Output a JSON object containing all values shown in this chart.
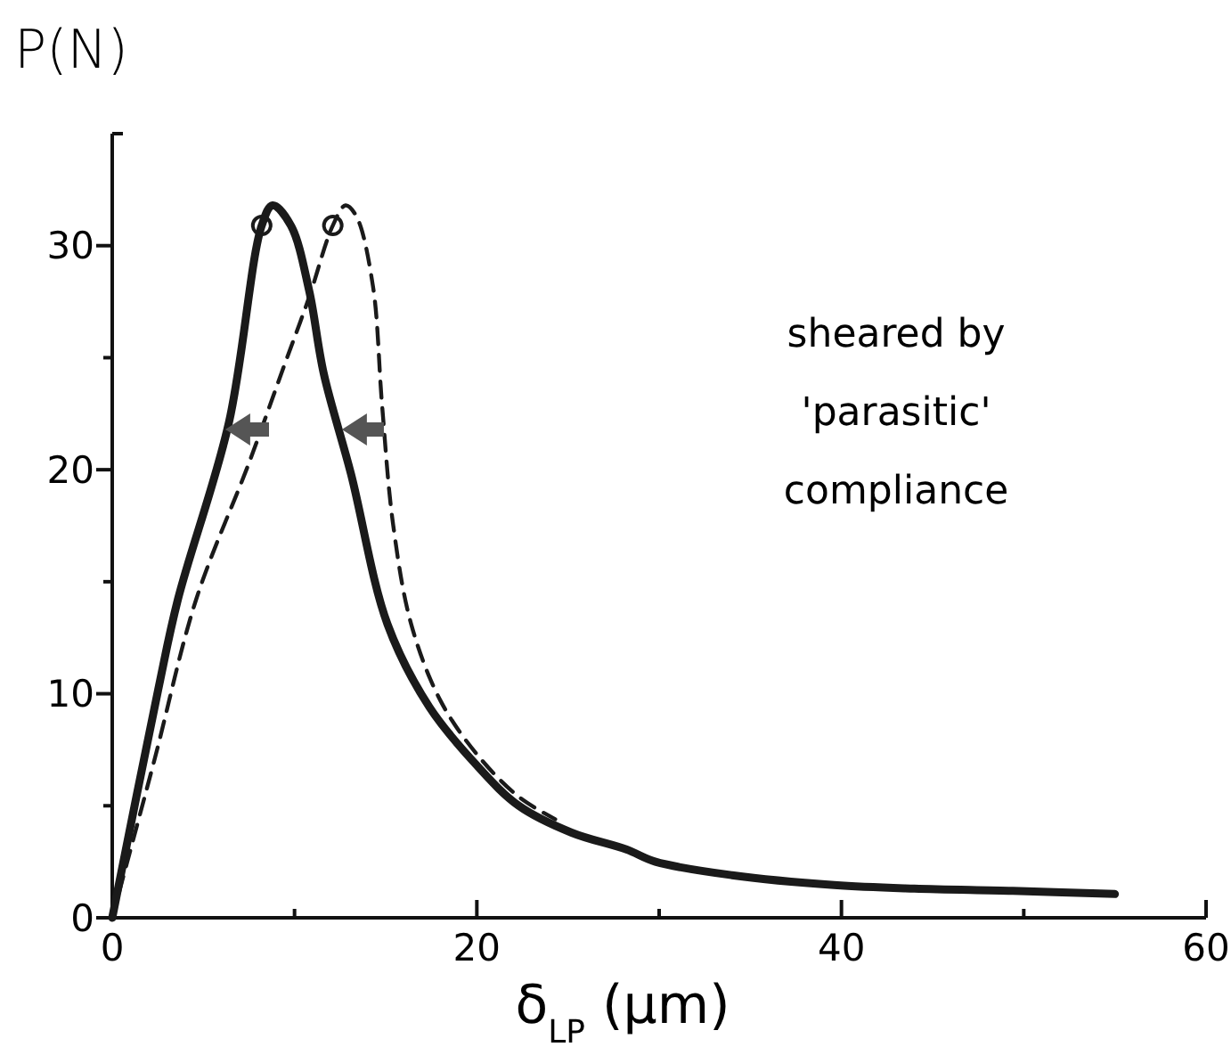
{
  "chart_data": {
    "type": "line",
    "ylabel": "P(N)",
    "xlabel": "δ$_{LP}$ (μm)",
    "xlim": [
      0,
      60
    ],
    "ylim": [
      0,
      35
    ],
    "xticks": [
      0,
      {
        "value": 10,
        "label": null
      },
      20,
      {
        "value": 30,
        "label": null
      },
      40,
      {
        "value": 50,
        "label": null
      },
      60
    ],
    "yticks": [
      0,
      {
        "value": 5,
        "label": null
      },
      10,
      {
        "value": 15,
        "label": null
      },
      20,
      {
        "value": 25,
        "label": null
      },
      30
    ],
    "grid": false,
    "annotations": [
      "sheared by\n'parasitic'\ncompliance"
    ],
    "series": [
      {
        "line_style": "solid",
        "marker": "none",
        "color": "#1a1a1a",
        "x": [
          0,
          2.5,
          3.6,
          6.4,
          8.2,
          8.8,
          9.8,
          10.8,
          11.6,
          13.1,
          15.1,
          17.4,
          20,
          22.3,
          25.2,
          28.2,
          29.8,
          34,
          39.6,
          44,
          49.4,
          55
        ],
        "values": [
          0,
          10.1,
          14.2,
          22.1,
          30.9,
          31.8,
          30.9,
          28,
          24.3,
          19.8,
          13.1,
          9.4,
          6.8,
          5,
          3.8,
          3.05,
          2.5,
          1.9,
          1.46,
          1.3,
          1.2,
          1.06
        ]
      },
      {
        "line_style": "dashed",
        "marker": "none",
        "color": "#1a1a1a",
        "x": [
          0,
          2.3,
          4.6,
          7.5,
          9.5,
          10.8,
          12.1,
          12.8,
          13.4,
          14.3,
          14.8,
          15.4,
          16.4,
          18,
          20,
          22.3,
          24.3
        ],
        "values": [
          0,
          7,
          14.2,
          20.3,
          24.8,
          27.7,
          30.9,
          31.8,
          31.3,
          28.2,
          22.9,
          17.6,
          13.1,
          9.7,
          7.3,
          5.4,
          4.4
        ]
      },
      {
        "type": "scatter",
        "marker": "circle",
        "color": "#1a1a1a",
        "x": [
          8.2,
          12.1
        ],
        "values": [
          30.9,
          30.9
        ]
      }
    ]
  }
}
